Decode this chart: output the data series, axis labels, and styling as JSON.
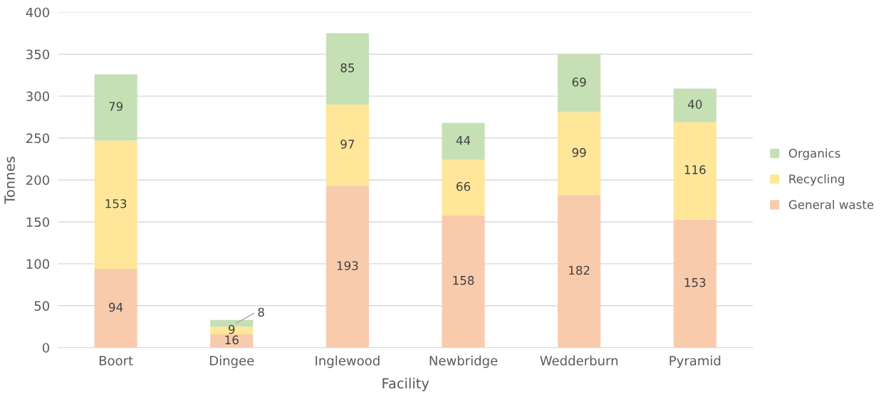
{
  "chart_data": {
    "type": "bar",
    "stacked": true,
    "xlabel": "Facility",
    "ylabel": "Tonnes",
    "categories": [
      "Boort",
      "Dingee",
      "Inglewood",
      "Newbridge",
      "Wedderburn",
      "Pyramid"
    ],
    "series": [
      {
        "name": "General waste",
        "color": "#f8cbad",
        "values": [
          94,
          16,
          193,
          158,
          182,
          153
        ]
      },
      {
        "name": "Recycling",
        "color": "#ffe699",
        "values": [
          153,
          9,
          97,
          66,
          99,
          116
        ]
      },
      {
        "name": "Organics",
        "color": "#c5e0b4",
        "values": [
          79,
          8,
          85,
          44,
          69,
          40
        ]
      }
    ],
    "ylim": [
      0,
      400
    ],
    "yticks": [
      0,
      50,
      100,
      150,
      200,
      250,
      300,
      350,
      400
    ],
    "grid": "y",
    "legend": "right",
    "data_labels": true
  }
}
